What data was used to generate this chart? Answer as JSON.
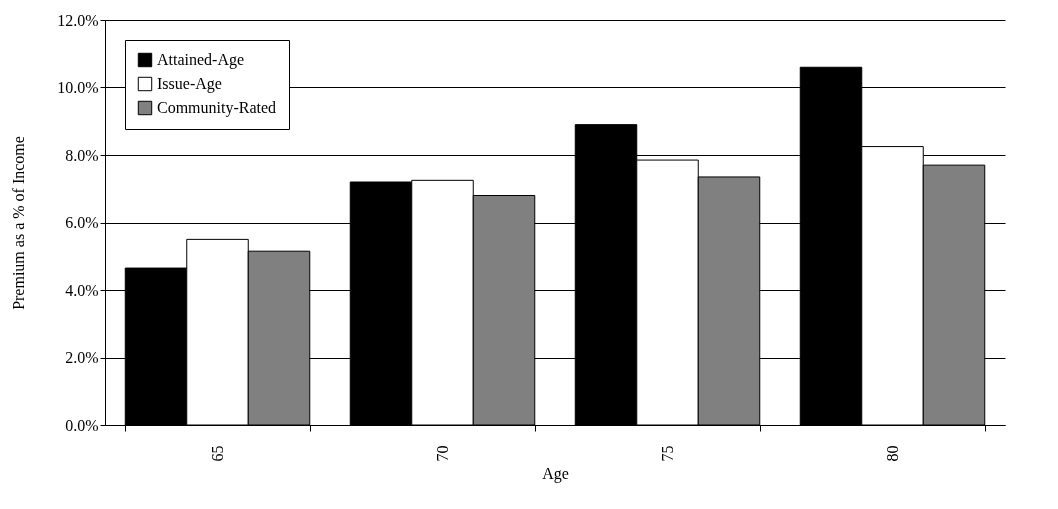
{
  "chart_data": {
    "type": "bar",
    "xlabel": "Age",
    "ylabel": "Premium as a % of Income",
    "categories": [
      "65",
      "70",
      "75",
      "80"
    ],
    "series": [
      {
        "name": "Attained-Age",
        "color": "#000000",
        "values": [
          4.65,
          7.2,
          8.9,
          10.6
        ]
      },
      {
        "name": "Issue-Age",
        "color": "#ffffff",
        "values": [
          5.5,
          7.25,
          7.85,
          8.25
        ]
      },
      {
        "name": "Community-Rated",
        "color": "#808080",
        "values": [
          5.15,
          6.8,
          7.35,
          7.7
        ]
      }
    ],
    "ylim": [
      0,
      12
    ],
    "yticks": [
      {
        "value": 0,
        "label": "0.0%"
      },
      {
        "value": 2,
        "label": "2.0%"
      },
      {
        "value": 4,
        "label": "4.0%"
      },
      {
        "value": 6,
        "label": "6.0%"
      },
      {
        "value": 8,
        "label": "8.0%"
      },
      {
        "value": 10,
        "label": "10.0%"
      },
      {
        "value": 12,
        "label": "12.0%"
      }
    ],
    "grid": "y",
    "legend": "top left"
  }
}
